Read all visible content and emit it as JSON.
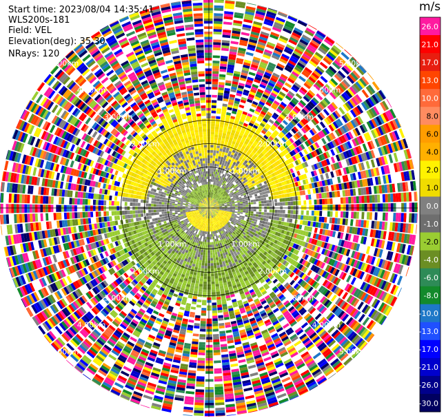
{
  "header": {
    "start_time": "Start time: 2023/08/04 14:35:41",
    "instrument": "WLS200s-181",
    "field": "Field: VEL",
    "elevation": "Elevation(deg): 35.30",
    "nrays": "NRays: 120"
  },
  "chart_data": {
    "type": "heatmap",
    "projection": "polar-ppi",
    "nrays": 120,
    "grid": true,
    "ring_labels": [
      "1.00km",
      "2.00km",
      "3.00km",
      "4.00km",
      "5.00km"
    ],
    "colorbar": {
      "unit": "m/s",
      "placement": "right",
      "tick_labels": [
        "26.0",
        "21.0",
        "17.0",
        "13.0",
        "10.0",
        "8.0",
        "6.0",
        "4.0",
        "2.0",
        "1.0",
        "0.0",
        "-1.0",
        "-2.0",
        "-4.0",
        "-6.0",
        "-8.0",
        "-10.0",
        "-13.0",
        "-17.0",
        "-21.0",
        "-26.0",
        "-30.0"
      ],
      "colors": [
        "#ff1aa0",
        "#ff0000",
        "#e81e10",
        "#ff4500",
        "#ff6a3a",
        "#ff8c60",
        "#ff9d00",
        "#ffb000",
        "#fff200",
        "#f0dc00",
        "#808080",
        "#6e6e6e",
        "#9acd32",
        "#6b8e23",
        "#2e8b57",
        "#138a2b",
        "#1e78c8",
        "#2050ff",
        "#0000ff",
        "#0000cd",
        "#00008b",
        "#000060"
      ]
    }
  }
}
